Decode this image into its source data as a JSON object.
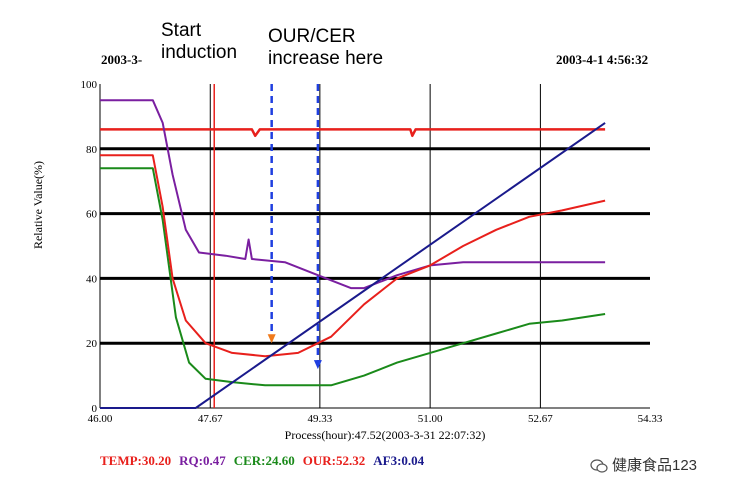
{
  "header": {
    "start_date": "2003-3-",
    "end_datetime": "2003-4-1 4:56:32"
  },
  "annotations": {
    "start_induction": [
      "Start",
      "induction"
    ],
    "our_cer": [
      "OUR/CER",
      "increase here"
    ]
  },
  "watermark": "健康食品123",
  "chart_data": {
    "type": "line",
    "xlabel": "Process(hour):47.52(2003-3-31 22:07:32)",
    "ylabel": "Relative Value(%)",
    "xlim": [
      46.0,
      54.33
    ],
    "ylim": [
      0,
      100
    ],
    "x_ticks": [
      "46.00",
      "47.67",
      "49.33",
      "51.00",
      "52.67",
      "54.33"
    ],
    "y_ticks": [
      "0",
      "20",
      "40",
      "60",
      "80",
      "100"
    ],
    "grid": true,
    "markers": {
      "induction_line_x": 47.73,
      "our_cer_lines_x": [
        48.6,
        49.3
      ],
      "arrow_heads_y": [
        20,
        12
      ]
    },
    "series": [
      {
        "name": "TEMP",
        "color": "#e8201c",
        "x": [
          46.0,
          48.3,
          48.35,
          48.42,
          50.7,
          50.73,
          50.78,
          53.65
        ],
        "y": [
          86,
          86,
          84,
          86,
          86,
          84,
          86,
          86
        ]
      },
      {
        "name": "RQ",
        "color": "#7a1fa0",
        "x": [
          46.0,
          46.8,
          46.95,
          47.1,
          47.3,
          47.5,
          47.9,
          48.2,
          48.25,
          48.3,
          48.8,
          49.3,
          49.8,
          50.0,
          50.5,
          51.0,
          51.5,
          52.0,
          53.0,
          53.65
        ],
        "y": [
          95,
          95,
          88,
          72,
          55,
          48,
          47,
          46,
          52,
          46,
          45,
          41,
          37,
          37,
          41,
          44,
          45,
          45,
          45,
          45
        ]
      },
      {
        "name": "CER",
        "color": "#1a8a1a",
        "x": [
          46.0,
          46.8,
          46.95,
          47.15,
          47.35,
          47.6,
          48.0,
          48.5,
          49.0,
          49.5,
          50.0,
          50.5,
          51.0,
          51.5,
          52.0,
          52.5,
          53.0,
          53.65
        ],
        "y": [
          74,
          74,
          58,
          28,
          14,
          9,
          8,
          7,
          7,
          7,
          10,
          14,
          17,
          20,
          23,
          26,
          27,
          29
        ]
      },
      {
        "name": "OUR",
        "color": "#e8201c",
        "x": [
          46.0,
          46.8,
          46.95,
          47.1,
          47.3,
          47.6,
          48.0,
          48.5,
          49.0,
          49.5,
          50.0,
          50.5,
          51.0,
          51.5,
          52.0,
          52.5,
          53.0,
          53.65
        ],
        "y": [
          78,
          78,
          62,
          40,
          27,
          20,
          17,
          16,
          17,
          22,
          32,
          40,
          44,
          50,
          55,
          59,
          61,
          64
        ]
      },
      {
        "name": "AF3",
        "color": "#1a1a8c",
        "x": [
          46.0,
          47.45,
          53.65
        ],
        "y": [
          0,
          0,
          88
        ]
      }
    ],
    "legend": [
      {
        "text": "TEMP:30.20",
        "color": "#e8201c"
      },
      {
        "text": "RQ:0.47",
        "color": "#7a1fa0"
      },
      {
        "text": "CER:24.60",
        "color": "#1a8a1a"
      },
      {
        "text": "OUR:52.32",
        "color": "#e8201c"
      },
      {
        "text": "AF3:0.04",
        "color": "#1a1a8c"
      }
    ]
  }
}
